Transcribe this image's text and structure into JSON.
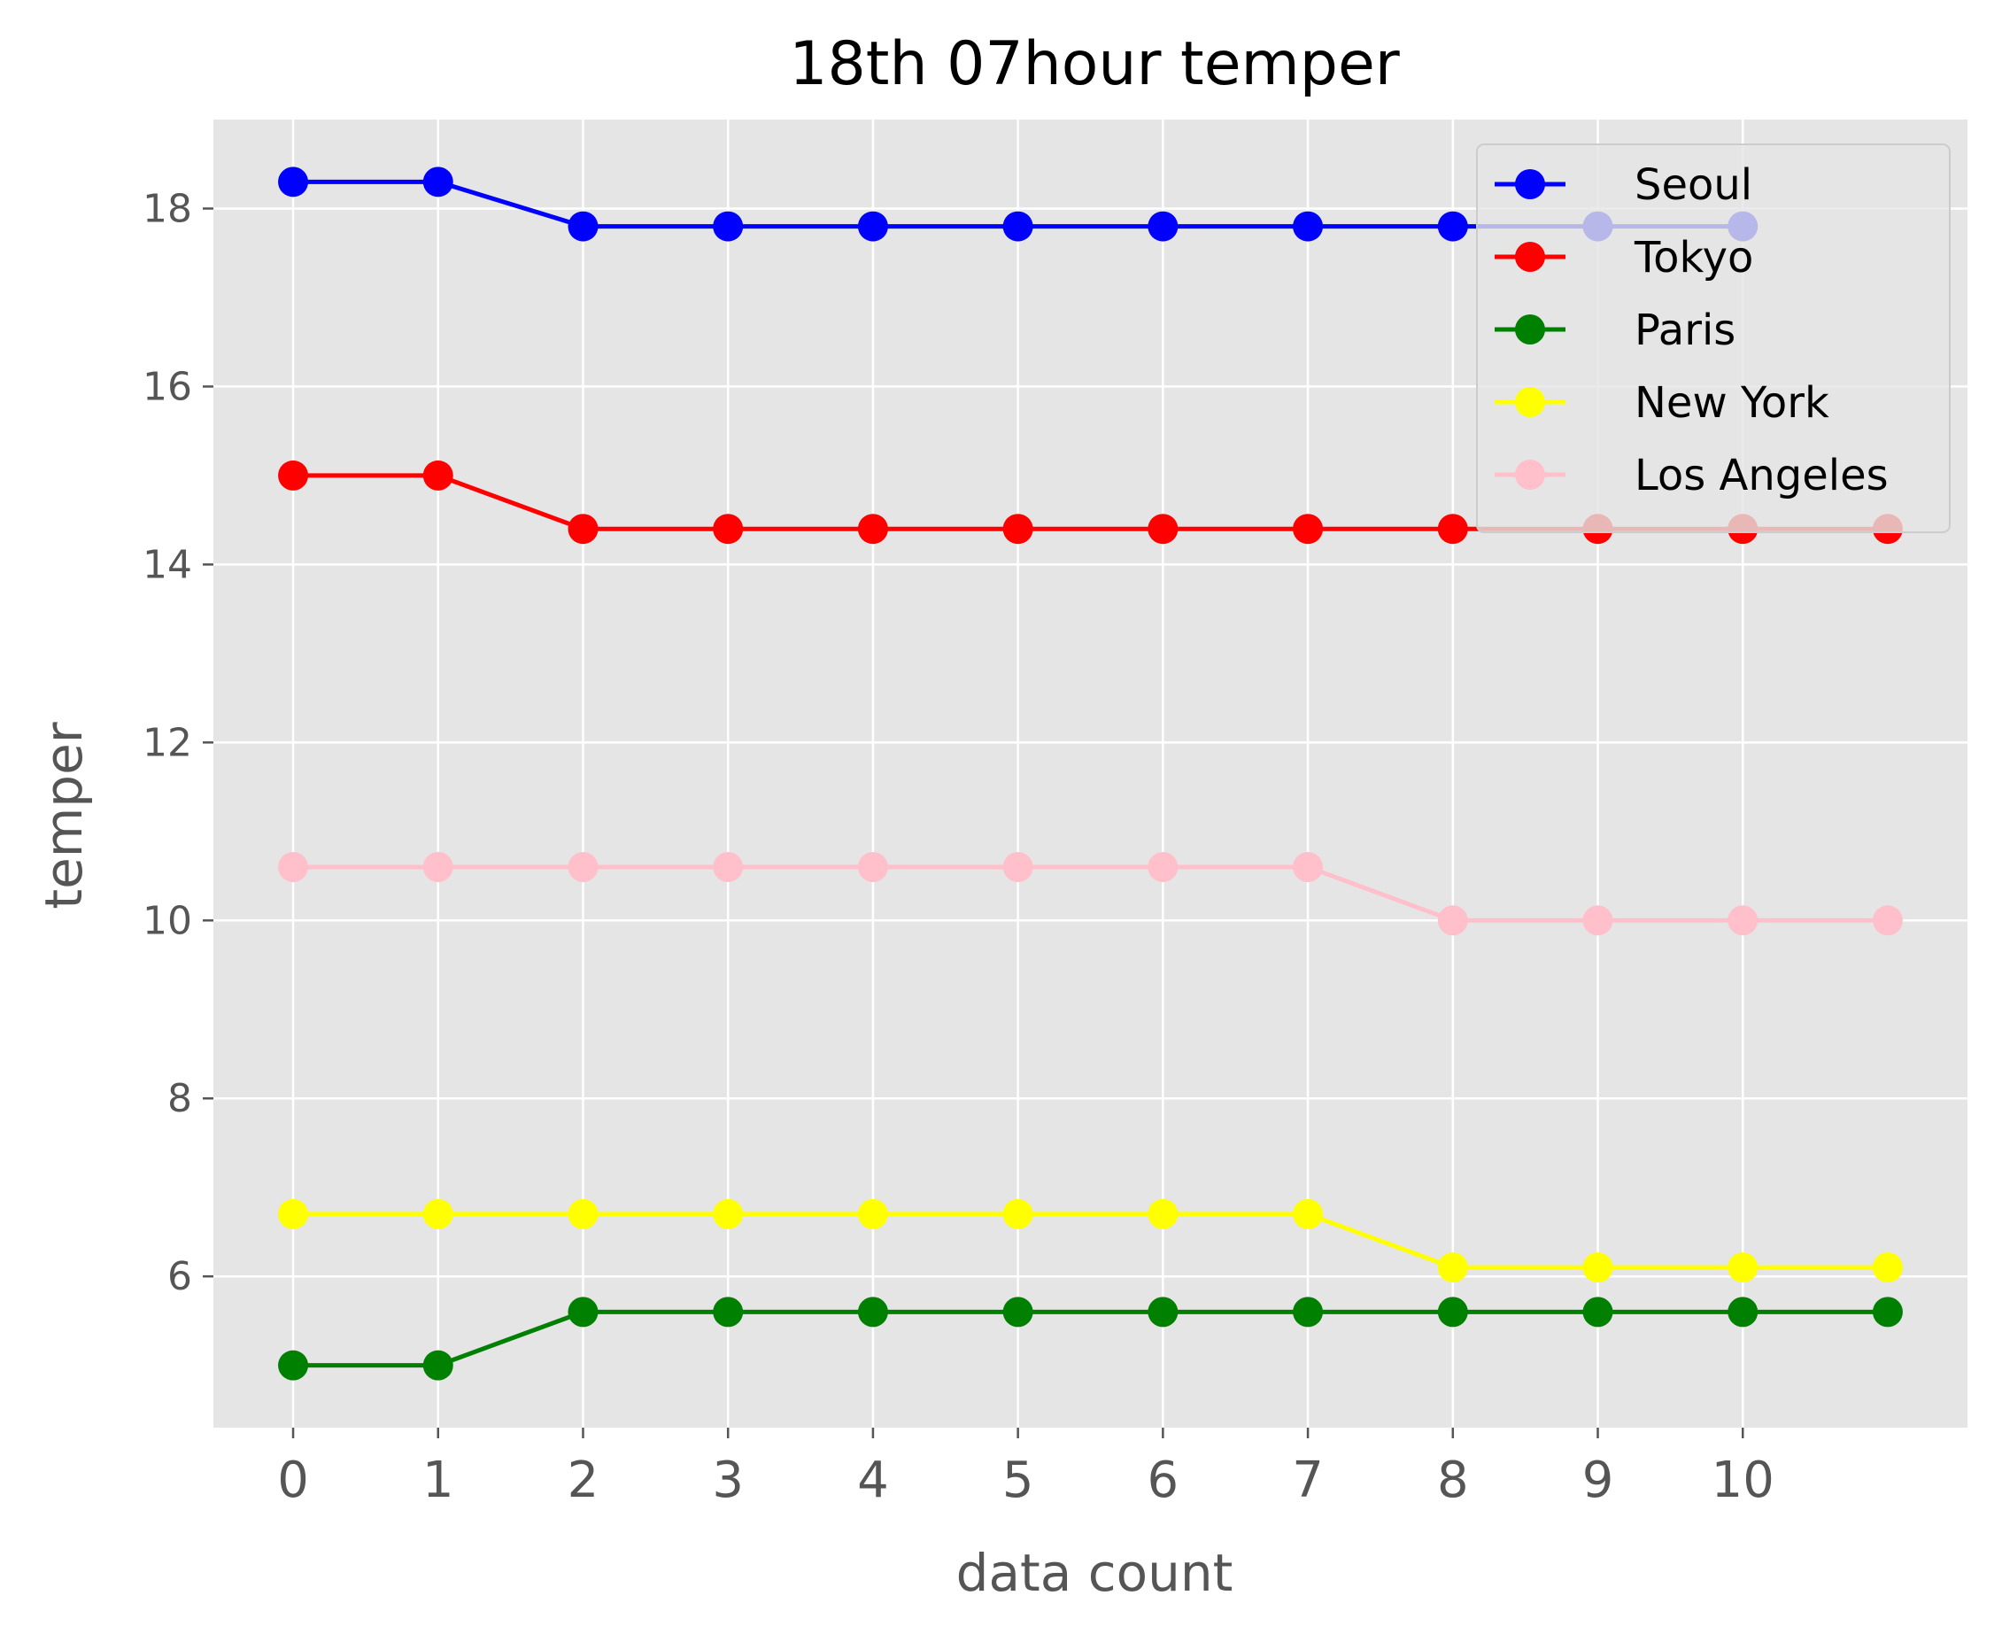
{
  "chart_data": {
    "type": "line",
    "title": "18th 07hour temper",
    "xlabel": "data count",
    "ylabel": "temper",
    "x_ticks": [
      "0",
      "1",
      "2",
      "3",
      "4",
      "5",
      "6",
      "7",
      "8",
      "9",
      "10"
    ],
    "y_ticks": [
      "6",
      "8",
      "10",
      "12",
      "14",
      "16",
      "18"
    ],
    "xlim": [
      -0.55,
      11.55
    ],
    "ylim": [
      4.3,
      19.0
    ],
    "grid": true,
    "legend_position": "top-right",
    "series": [
      {
        "name": "Seoul",
        "color": "#0000ff",
        "x": [
          0,
          1,
          2,
          3,
          4,
          5,
          6,
          7,
          8,
          9,
          10
        ],
        "values": [
          18.3,
          18.3,
          17.8,
          17.8,
          17.8,
          17.8,
          17.8,
          17.8,
          17.8,
          17.8,
          17.8
        ]
      },
      {
        "name": "Tokyo",
        "color": "#ff0000",
        "x": [
          0,
          1,
          2,
          3,
          4,
          5,
          6,
          7,
          8,
          9,
          10,
          11
        ],
        "values": [
          15.0,
          15.0,
          14.4,
          14.4,
          14.4,
          14.4,
          14.4,
          14.4,
          14.4,
          14.4,
          14.4,
          14.4
        ]
      },
      {
        "name": "Paris",
        "color": "#008000",
        "x": [
          0,
          1,
          2,
          3,
          4,
          5,
          6,
          7,
          8,
          9,
          10,
          11
        ],
        "values": [
          5.0,
          5.0,
          5.6,
          5.6,
          5.6,
          5.6,
          5.6,
          5.6,
          5.6,
          5.6,
          5.6,
          5.6
        ]
      },
      {
        "name": "New York",
        "color": "#ffff00",
        "x": [
          0,
          1,
          2,
          3,
          4,
          5,
          6,
          7,
          8,
          9,
          10,
          11
        ],
        "values": [
          6.7,
          6.7,
          6.7,
          6.7,
          6.7,
          6.7,
          6.7,
          6.7,
          6.1,
          6.1,
          6.1,
          6.1
        ]
      },
      {
        "name": "Los Angeles",
        "color": "#ffc0cb",
        "x": [
          0,
          1,
          2,
          3,
          4,
          5,
          6,
          7,
          8,
          9,
          10,
          11
        ],
        "values": [
          10.6,
          10.6,
          10.6,
          10.6,
          10.6,
          10.6,
          10.6,
          10.6,
          10.0,
          10.0,
          10.0,
          10.0
        ]
      }
    ]
  }
}
